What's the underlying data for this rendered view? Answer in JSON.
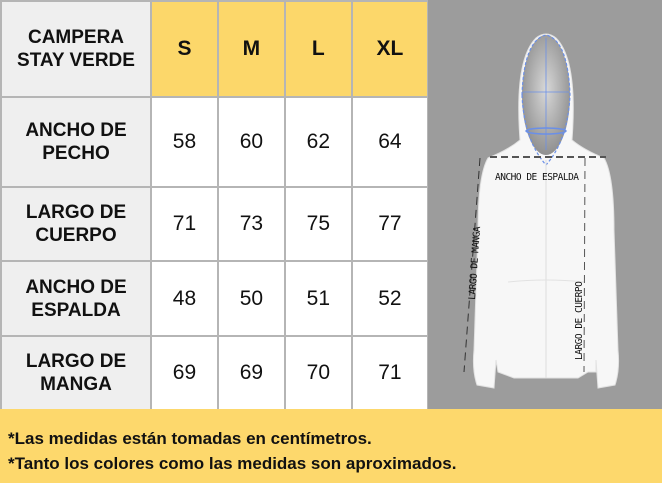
{
  "table": {
    "corner": "CAMPERA STAY VERDE",
    "sizes": [
      "S",
      "M",
      "L",
      "XL"
    ],
    "rows": [
      {
        "label": "ANCHO DE PECHO",
        "values": [
          "58",
          "60",
          "62",
          "64"
        ]
      },
      {
        "label": "LARGO DE CUERPO",
        "values": [
          "71",
          "73",
          "75",
          "77"
        ]
      },
      {
        "label": "ANCHO DE ESPALDA",
        "values": [
          "48",
          "50",
          "51",
          "52"
        ]
      },
      {
        "label": "LARGO DE MANGA",
        "values": [
          "69",
          "69",
          "70",
          "71"
        ]
      }
    ]
  },
  "figure": {
    "label_shoulder": "ANCHO DE ESPALDA",
    "label_sleeve": "LARGO DE MANGA",
    "label_body": "LARGO DE CUERPO"
  },
  "footer": {
    "note1": "*Las medidas están tomadas en centímetros.",
    "note2": "*Tanto los colores como las medidas son aproximados."
  },
  "colors": {
    "header": "#fcd76a",
    "footer": "#fdd86c",
    "row_header": "#efefef",
    "figure_bg": "#9c9c9c"
  }
}
